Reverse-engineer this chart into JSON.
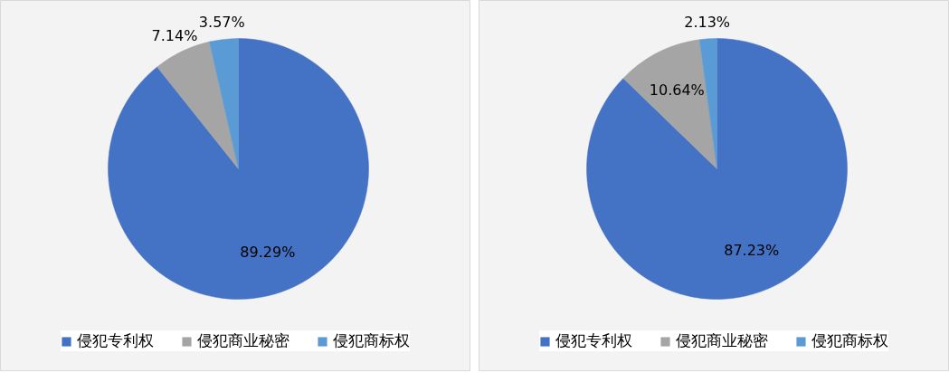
{
  "chart_data": [
    {
      "type": "pie",
      "categories": [
        "侵犯专利权",
        "侵犯商业秘密",
        "侵犯商标权"
      ],
      "values": [
        89.29,
        7.14,
        3.57
      ],
      "colors": [
        "#4472c4",
        "#a5a5a5",
        "#5b9bd5"
      ],
      "value_labels": [
        "89.29%",
        "7.14%",
        "3.57%"
      ],
      "legend": "bottom"
    },
    {
      "type": "pie",
      "categories": [
        "侵犯专利权",
        "侵犯商业秘密",
        "侵犯商标权"
      ],
      "values": [
        87.23,
        10.64,
        2.13
      ],
      "colors": [
        "#4472c4",
        "#a5a5a5",
        "#5b9bd5"
      ],
      "value_labels": [
        "87.23%",
        "10.64%",
        "2.13%"
      ],
      "legend": "bottom"
    }
  ]
}
